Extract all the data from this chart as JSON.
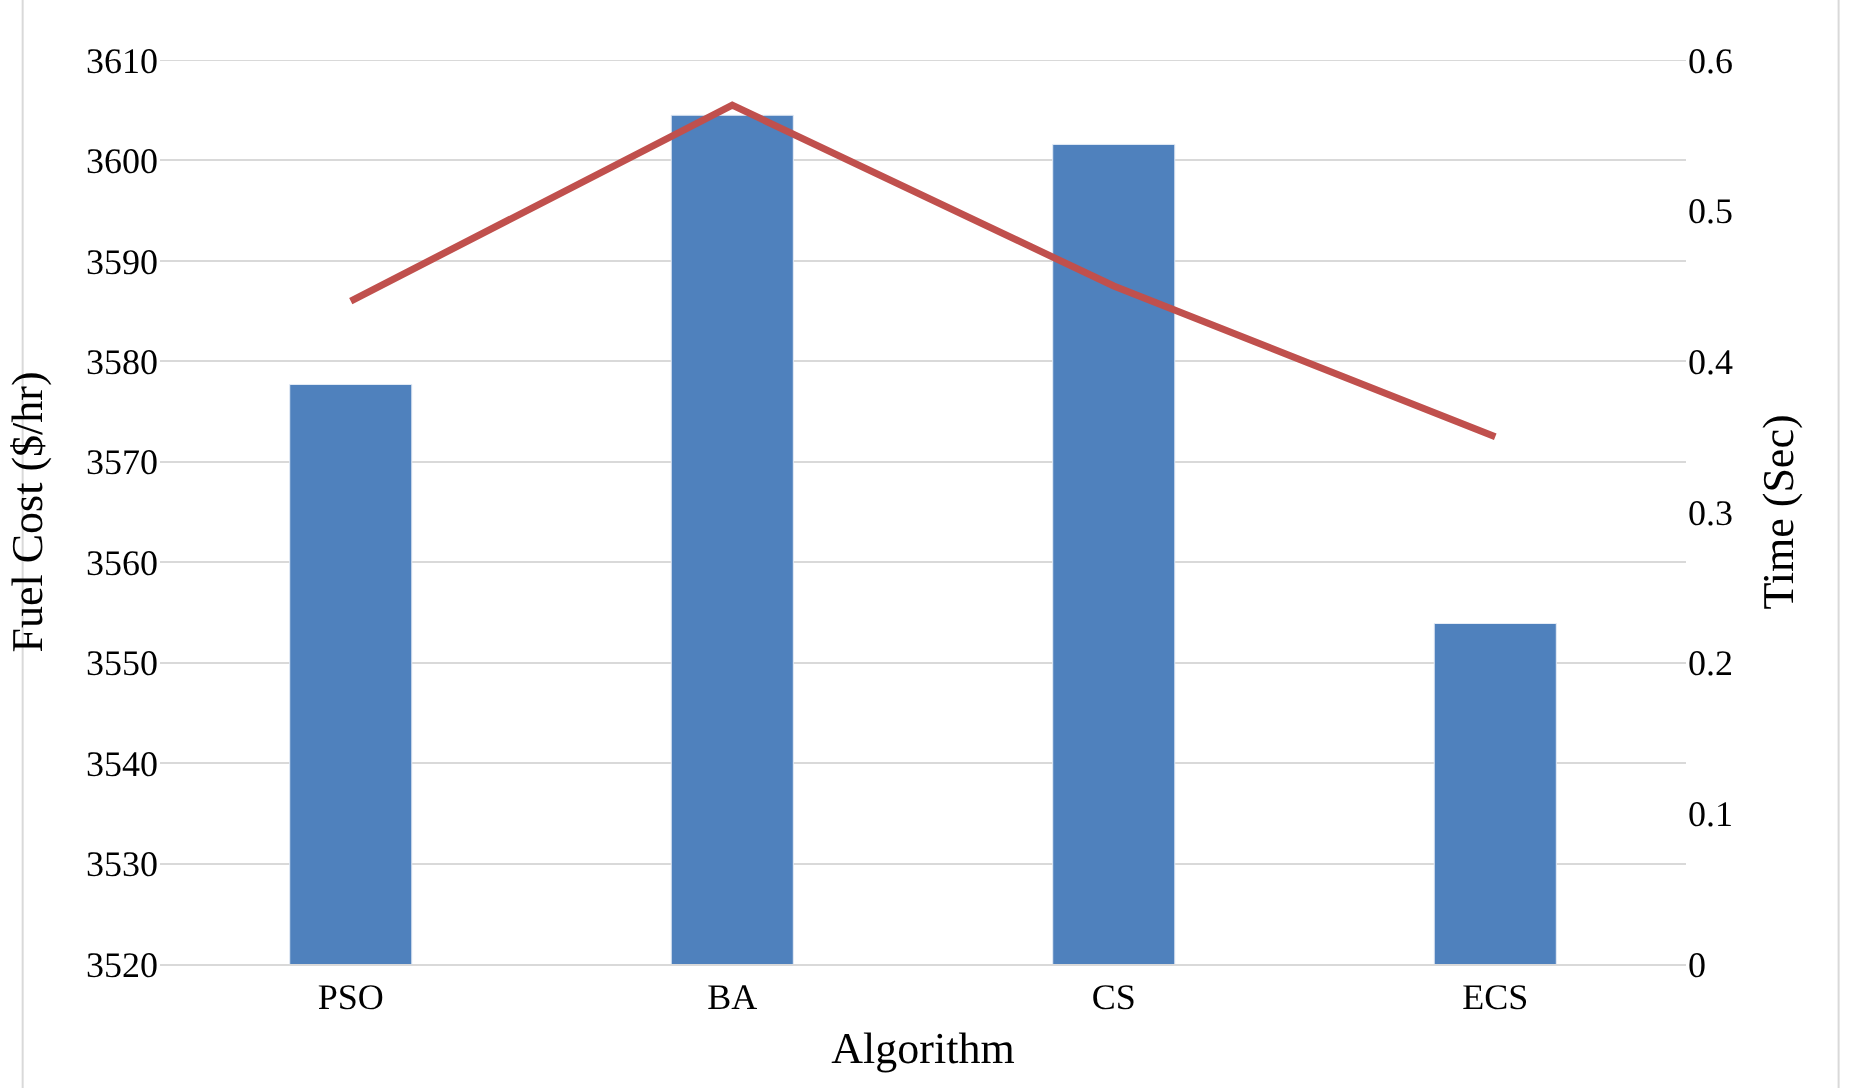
{
  "chart_data": {
    "type": "bar",
    "xlabel": "Algorithm",
    "ylabel": "Fuel Cost ($/hr)",
    "y2label": "Time (Sec)",
    "categories": [
      "PSO",
      "BA",
      "CS",
      "ECS"
    ],
    "series": [
      {
        "color": "#4f81bd",
        "values": [
          3577.7,
          3604.5,
          3601.6,
          3553.9
        ]
      },
      {
        "type": "line",
        "axis": "y2",
        "color": "#c0504d",
        "values": [
          0.44,
          0.57,
          0.45,
          0.35
        ],
        "marker": "none"
      }
    ],
    "ylim": [
      3520,
      3610
    ],
    "yticks": [
      3520,
      3530,
      3540,
      3550,
      3560,
      3570,
      3580,
      3590,
      3600,
      3610
    ],
    "y2lim": [
      0,
      0.6
    ],
    "y2ticks": [
      0,
      0.1,
      0.2,
      0.3,
      0.4,
      0.5,
      0.6
    ],
    "grid": "y"
  }
}
